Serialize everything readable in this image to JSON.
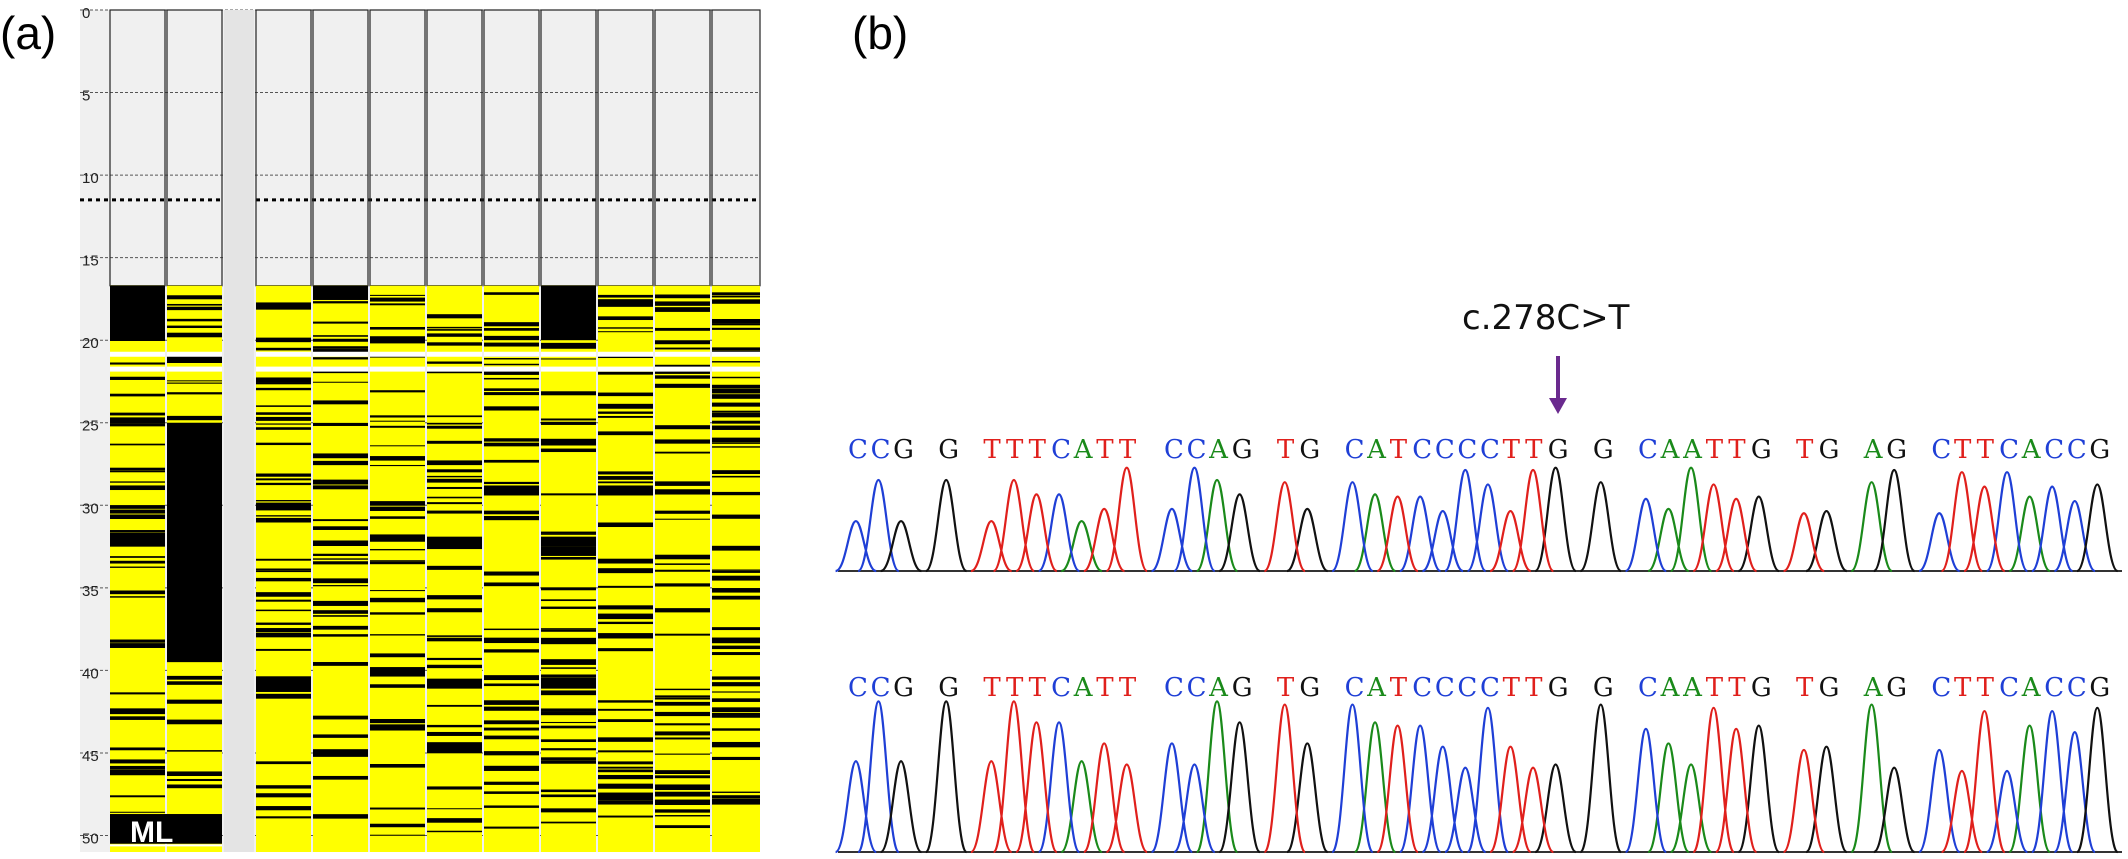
{
  "panel_a": {
    "label": "(a)",
    "y_ticks": [
      "0",
      "5",
      "10",
      "15",
      "20",
      "25",
      "30",
      "35",
      "40",
      "45",
      "50"
    ],
    "y_range": [
      0,
      51
    ],
    "dotted_threshold": 11.5,
    "lane_marker": "ML",
    "colors": {
      "background": "#f0f0f0",
      "band_fill": "#ffff00",
      "band_line": "#000000",
      "grid": "#444444"
    }
  },
  "panel_b": {
    "label": "(b)",
    "mutation_label": "c.278C>T",
    "arrow_color": "#6a2a8e",
    "tracks": [
      {
        "sequence": "CCG G TTTCATT CCAG TG CATCCCCTTG G CAATTG TG AG CTTCACCG"
      },
      {
        "sequence": "CCG G TTTCATT CCAG TG CATCCCCTTG G CAATTG TG AG CTTCACCG"
      }
    ],
    "base_colors": {
      "A": "#1a8a1a",
      "C": "#1f3fd6",
      "G": "#111111",
      "T": "#e0201c"
    }
  }
}
